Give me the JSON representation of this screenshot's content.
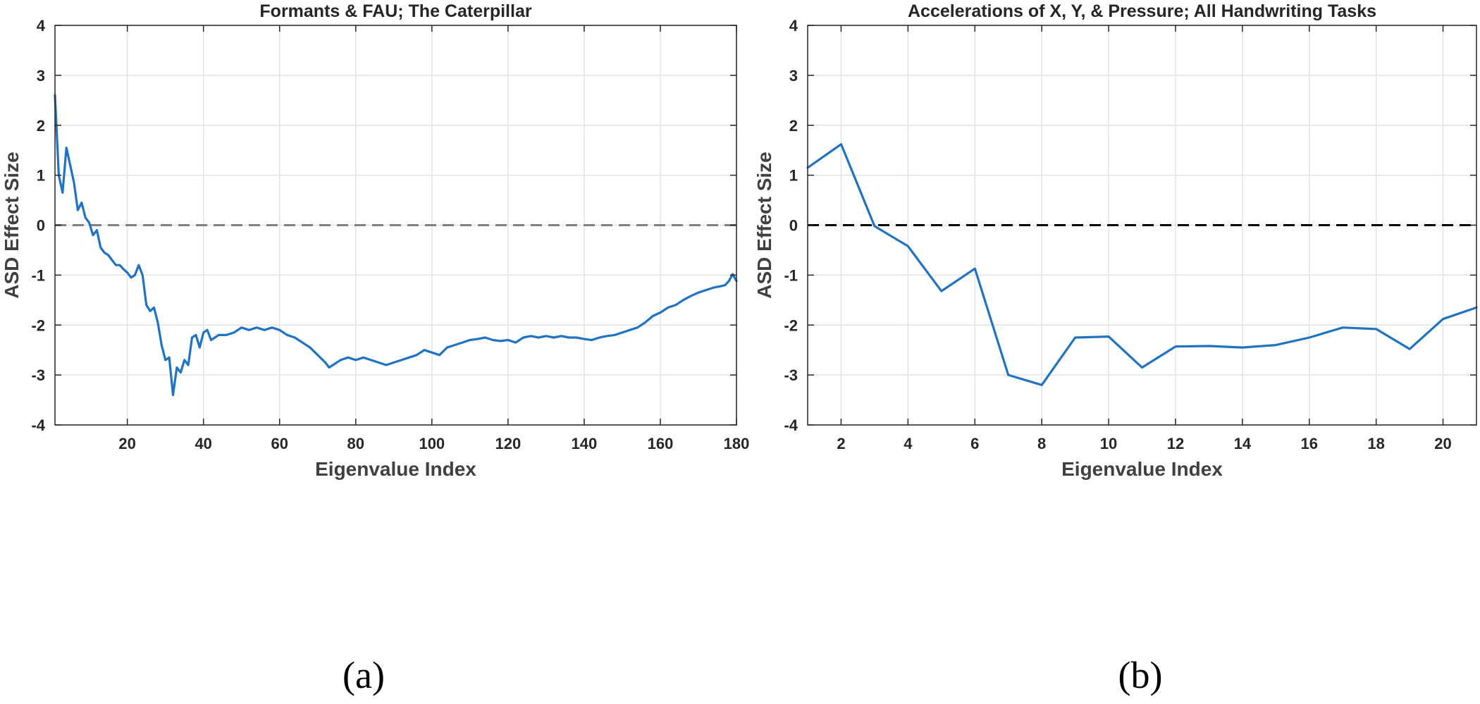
{
  "chart_data": [
    {
      "type": "line",
      "title": "Formants & FAU; The Caterpillar",
      "xlabel": "Eigenvalue Index",
      "ylabel": "ASD Effect Size",
      "caption": "(a)",
      "xlim": [
        1,
        180
      ],
      "ylim": [
        -4,
        4
      ],
      "xticks": [
        20,
        40,
        60,
        80,
        100,
        120,
        140,
        160,
        180
      ],
      "yticks": [
        -4,
        -3,
        -2,
        -1,
        0,
        1,
        2,
        3,
        4
      ],
      "grid": true,
      "reference_line": {
        "y": 0,
        "style": "dashed",
        "color": "#808080"
      },
      "series_color": "#1f73c2",
      "series": [
        {
          "x": [
            1,
            2,
            3,
            4,
            5,
            6,
            7,
            8,
            9,
            10,
            11,
            12,
            13,
            14,
            15,
            16,
            17,
            18,
            19,
            20,
            21,
            22,
            23,
            24,
            25,
            26,
            27,
            28,
            29,
            30,
            31,
            32,
            33,
            34,
            35,
            36,
            37,
            38,
            39,
            40,
            41,
            42,
            44,
            46,
            48,
            50,
            52,
            54,
            56,
            58,
            60,
            62,
            64,
            66,
            68,
            70,
            72,
            73,
            74,
            76,
            78,
            80,
            82,
            84,
            86,
            88,
            90,
            92,
            94,
            96,
            98,
            100,
            102,
            104,
            106,
            108,
            110,
            112,
            114,
            116,
            118,
            120,
            122,
            124,
            126,
            128,
            130,
            132,
            134,
            136,
            138,
            140,
            142,
            144,
            146,
            148,
            150,
            152,
            154,
            156,
            158,
            160,
            162,
            164,
            166,
            168,
            170,
            172,
            174,
            176,
            177,
            178,
            179,
            180
          ],
          "values": [
            2.6,
            1.0,
            0.65,
            1.55,
            1.2,
            0.85,
            0.3,
            0.45,
            0.15,
            0.05,
            -0.2,
            -0.1,
            -0.45,
            -0.55,
            -0.6,
            -0.7,
            -0.8,
            -0.8,
            -0.88,
            -0.95,
            -1.05,
            -1.0,
            -0.8,
            -1.0,
            -1.6,
            -1.72,
            -1.65,
            -1.95,
            -2.4,
            -2.7,
            -2.65,
            -3.4,
            -2.85,
            -2.95,
            -2.7,
            -2.8,
            -2.25,
            -2.2,
            -2.45,
            -2.15,
            -2.1,
            -2.3,
            -2.2,
            -2.2,
            -2.15,
            -2.05,
            -2.1,
            -2.05,
            -2.1,
            -2.05,
            -2.1,
            -2.2,
            -2.25,
            -2.35,
            -2.45,
            -2.6,
            -2.75,
            -2.85,
            -2.8,
            -2.7,
            -2.65,
            -2.7,
            -2.65,
            -2.7,
            -2.75,
            -2.8,
            -2.75,
            -2.7,
            -2.65,
            -2.6,
            -2.5,
            -2.55,
            -2.6,
            -2.45,
            -2.4,
            -2.35,
            -2.3,
            -2.28,
            -2.25,
            -2.3,
            -2.32,
            -2.3,
            -2.35,
            -2.25,
            -2.22,
            -2.25,
            -2.22,
            -2.25,
            -2.22,
            -2.25,
            -2.25,
            -2.28,
            -2.3,
            -2.25,
            -2.22,
            -2.2,
            -2.15,
            -2.1,
            -2.05,
            -1.95,
            -1.82,
            -1.75,
            -1.65,
            -1.6,
            -1.5,
            -1.42,
            -1.35,
            -1.3,
            -1.25,
            -1.22,
            -1.2,
            -1.12,
            -0.98,
            -1.12
          ]
        }
      ]
    },
    {
      "type": "line",
      "title": "Accelerations of X, Y, & Pressure; All Handwriting Tasks",
      "xlabel": "Eigenvalue Index",
      "ylabel": "ASD Effect Size",
      "caption": "(b)",
      "xlim": [
        1,
        21
      ],
      "ylim": [
        -4,
        4
      ],
      "xticks": [
        2,
        4,
        6,
        8,
        10,
        12,
        14,
        16,
        18,
        20
      ],
      "yticks": [
        -4,
        -3,
        -2,
        -1,
        0,
        1,
        2,
        3,
        4
      ],
      "grid": true,
      "reference_line": {
        "y": 0,
        "style": "dashed",
        "color": "#000000"
      },
      "series_color": "#1f73c2",
      "series": [
        {
          "x": [
            1,
            2,
            3,
            4,
            5,
            6,
            7,
            8,
            9,
            10,
            11,
            12,
            13,
            14,
            15,
            16,
            17,
            18,
            19,
            20,
            21
          ],
          "values": [
            1.15,
            1.62,
            -0.02,
            -0.42,
            -1.32,
            -0.87,
            -3.0,
            -3.2,
            -2.25,
            -2.23,
            -2.85,
            -2.43,
            -2.42,
            -2.45,
            -2.4,
            -2.25,
            -2.05,
            -2.08,
            -2.48,
            -1.88,
            -1.65
          ]
        }
      ]
    }
  ]
}
